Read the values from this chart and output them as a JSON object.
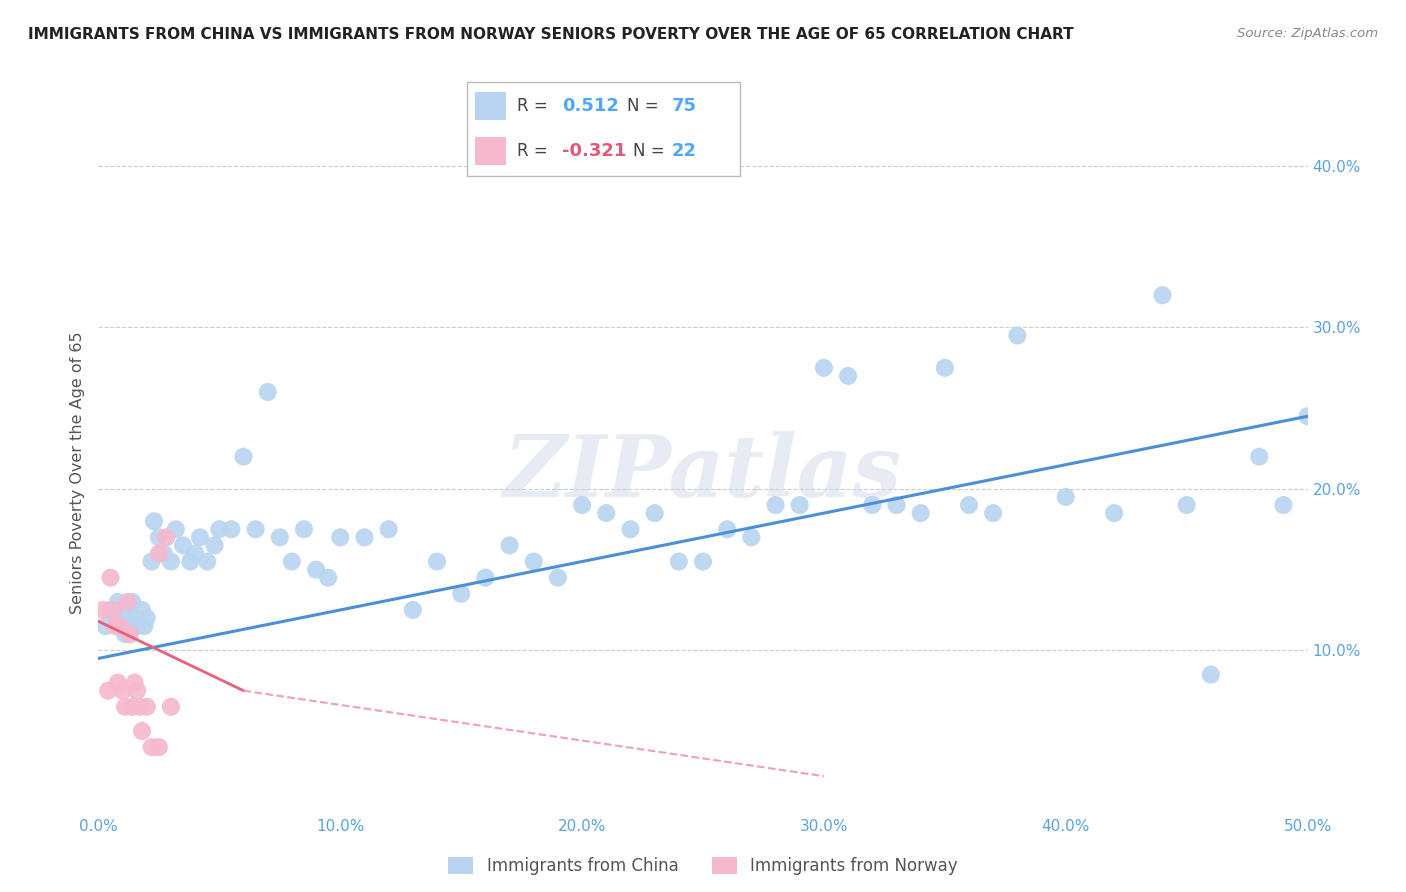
{
  "title": "IMMIGRANTS FROM CHINA VS IMMIGRANTS FROM NORWAY SENIORS POVERTY OVER THE AGE OF 65 CORRELATION CHART",
  "source": "Source: ZipAtlas.com",
  "ylabel": "Seniors Poverty Over the Age of 65",
  "xlim": [
    0.0,
    0.5
  ],
  "ylim": [
    0.0,
    0.42
  ],
  "xticks": [
    0.0,
    0.1,
    0.2,
    0.3,
    0.4,
    0.5
  ],
  "yticks": [
    0.0,
    0.1,
    0.2,
    0.3,
    0.4
  ],
  "xtick_labels": [
    "0.0%",
    "10.0%",
    "20.0%",
    "30.0%",
    "40.0%",
    "50.0%"
  ],
  "right_ytick_labels": [
    "",
    "10.0%",
    "20.0%",
    "30.0%",
    "40.0%"
  ],
  "china_R": 0.512,
  "china_N": 75,
  "norway_R": -0.321,
  "norway_N": 22,
  "china_color": "#b8d4f0",
  "norway_color": "#f5b8cc",
  "china_line_color": "#4a90d9",
  "norway_line_solid_color": "#e8607a",
  "norway_line_dash_color": "#f0a0b8",
  "watermark": "ZIPatlas",
  "china_scatter_x": [
    0.003,
    0.005,
    0.007,
    0.008,
    0.009,
    0.01,
    0.01,
    0.011,
    0.012,
    0.013,
    0.014,
    0.015,
    0.016,
    0.018,
    0.019,
    0.02,
    0.022,
    0.023,
    0.025,
    0.027,
    0.03,
    0.032,
    0.035,
    0.038,
    0.04,
    0.042,
    0.045,
    0.048,
    0.05,
    0.055,
    0.06,
    0.065,
    0.07,
    0.075,
    0.08,
    0.085,
    0.09,
    0.095,
    0.1,
    0.11,
    0.12,
    0.13,
    0.14,
    0.15,
    0.16,
    0.17,
    0.18,
    0.19,
    0.2,
    0.21,
    0.22,
    0.23,
    0.24,
    0.25,
    0.26,
    0.27,
    0.28,
    0.29,
    0.3,
    0.31,
    0.32,
    0.33,
    0.34,
    0.35,
    0.36,
    0.37,
    0.38,
    0.4,
    0.42,
    0.44,
    0.45,
    0.46,
    0.48,
    0.49,
    0.5
  ],
  "china_scatter_y": [
    0.115,
    0.125,
    0.12,
    0.13,
    0.115,
    0.12,
    0.115,
    0.11,
    0.125,
    0.115,
    0.13,
    0.12,
    0.115,
    0.125,
    0.115,
    0.12,
    0.155,
    0.18,
    0.17,
    0.16,
    0.155,
    0.175,
    0.165,
    0.155,
    0.16,
    0.17,
    0.155,
    0.165,
    0.175,
    0.175,
    0.22,
    0.175,
    0.26,
    0.17,
    0.155,
    0.175,
    0.15,
    0.145,
    0.17,
    0.17,
    0.175,
    0.125,
    0.155,
    0.135,
    0.145,
    0.165,
    0.155,
    0.145,
    0.19,
    0.185,
    0.175,
    0.185,
    0.155,
    0.155,
    0.175,
    0.17,
    0.19,
    0.19,
    0.275,
    0.27,
    0.19,
    0.19,
    0.185,
    0.275,
    0.19,
    0.185,
    0.295,
    0.195,
    0.185,
    0.32,
    0.19,
    0.085,
    0.22,
    0.19,
    0.245
  ],
  "norway_scatter_x": [
    0.002,
    0.004,
    0.005,
    0.006,
    0.007,
    0.008,
    0.009,
    0.01,
    0.011,
    0.012,
    0.013,
    0.014,
    0.015,
    0.016,
    0.017,
    0.018,
    0.02,
    0.022,
    0.025,
    0.025,
    0.028,
    0.03
  ],
  "norway_scatter_y": [
    0.125,
    0.075,
    0.145,
    0.125,
    0.115,
    0.08,
    0.115,
    0.075,
    0.065,
    0.13,
    0.11,
    0.065,
    0.08,
    0.075,
    0.065,
    0.05,
    0.065,
    0.04,
    0.04,
    0.16,
    0.17,
    0.065
  ],
  "china_line_x": [
    0.0,
    0.5
  ],
  "china_line_y": [
    0.095,
    0.245
  ],
  "norway_solid_line_x": [
    0.0,
    0.06
  ],
  "norway_solid_line_y": [
    0.118,
    0.075
  ],
  "norway_dash_line_x": [
    0.06,
    0.3
  ],
  "norway_dash_line_y": [
    0.075,
    0.022
  ]
}
